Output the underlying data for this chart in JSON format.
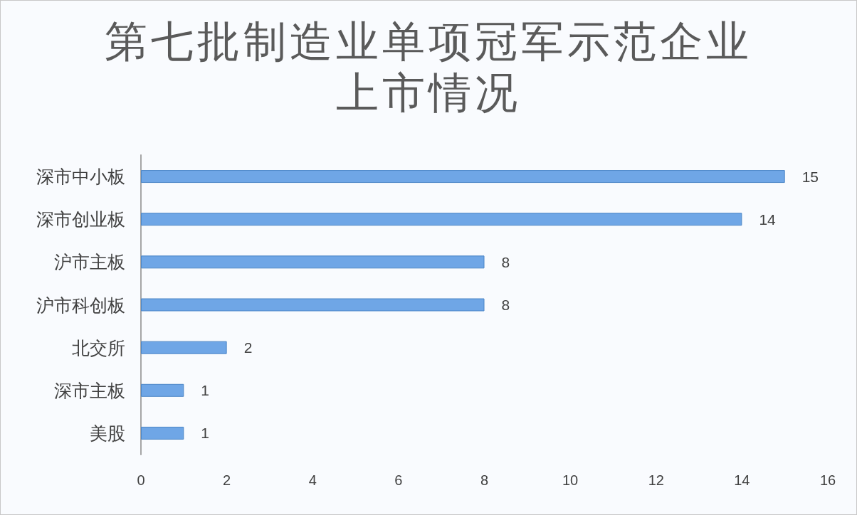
{
  "chart_data": {
    "type": "bar",
    "title": "第七批制造业单项冠军示范企业上市情况",
    "orientation": "horizontal",
    "categories": [
      "深市中小板",
      "深市创业板",
      "沪市主板",
      "沪市科创板",
      "北交所",
      "深市主板",
      "美股"
    ],
    "values": [
      15,
      14,
      8,
      8,
      2,
      1,
      1
    ],
    "color": "#6fa6e6",
    "xlim": [
      0,
      16
    ],
    "xticks": [
      0,
      2,
      4,
      6,
      8,
      10,
      12,
      14,
      16
    ],
    "data_labels": true,
    "grid": false
  }
}
